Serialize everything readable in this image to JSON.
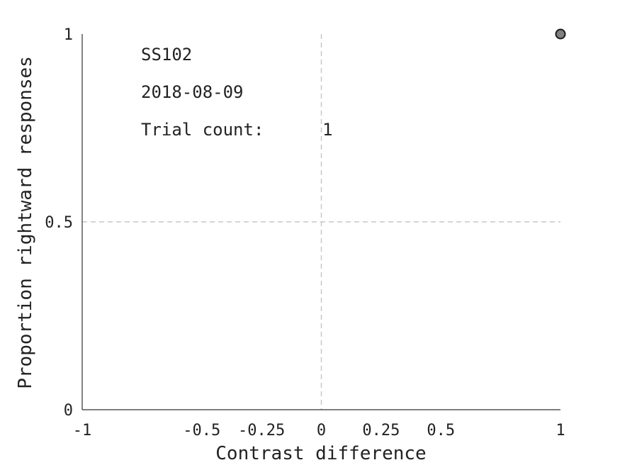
{
  "chart_data": {
    "type": "scatter",
    "xlabel": "Contrast difference",
    "ylabel": "Proportion rightward responses",
    "xlim": [
      -1,
      1
    ],
    "ylim": [
      0,
      1
    ],
    "xticks": [
      -1,
      -0.5,
      -0.25,
      0,
      0.25,
      0.5,
      1
    ],
    "xtick_labels": [
      "-1",
      "-0.5",
      "-0.25",
      "0",
      "0.25",
      "0.5",
      "1"
    ],
    "yticks": [
      0,
      0.5,
      1
    ],
    "ytick_labels": [
      "0",
      "0.5",
      "1"
    ],
    "reference_lines": {
      "x": 0,
      "y": 0.5
    },
    "points": [
      {
        "x": 1,
        "y": 1
      }
    ],
    "marker_color": "#808080",
    "annotations": {
      "subject": "SS102",
      "date": "2018-08-09",
      "trial_count_label": "Trial count:",
      "trial_count_value": "1"
    }
  }
}
